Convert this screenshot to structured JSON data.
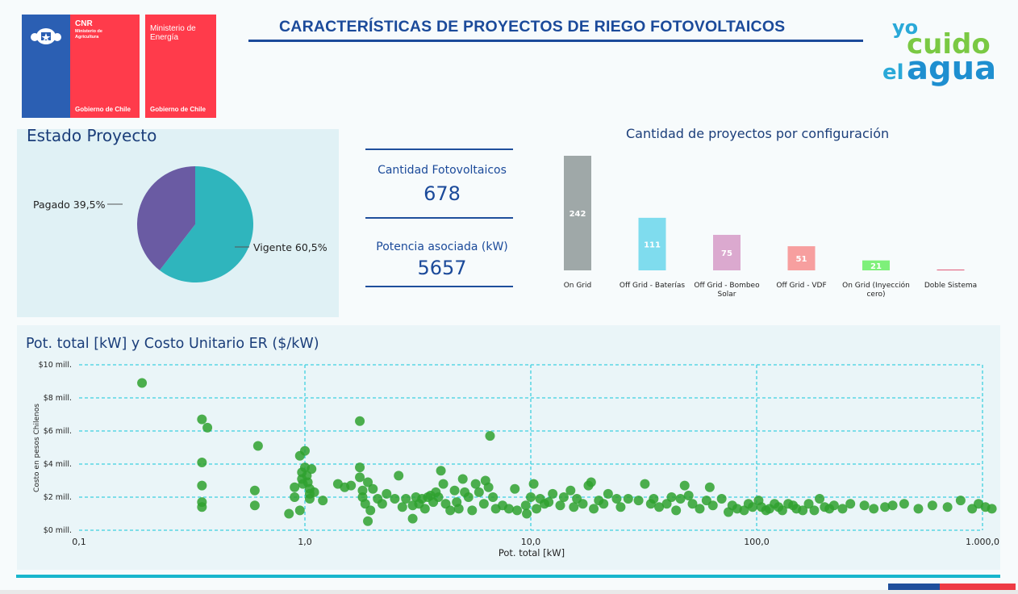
{
  "header": {
    "title": "CARACTERÍSTICAS DE PROYECTOS DE RIEGO FOTOVOLTAICOS",
    "logo_cnr": "CNR",
    "logo_cnr_sub": "Ministerio de Agricultura",
    "logo_gob1": "Gobierno de Chile",
    "logo_min": "Ministerio de Energía",
    "logo_gob2": "Gobierno de Chile",
    "brand": [
      "yo",
      "cuido",
      "el",
      "agua"
    ]
  },
  "estado": {
    "title": "Estado Proyecto",
    "slices": [
      {
        "label": "Vigente 60,5%",
        "value": 60.5,
        "color": "#2fb5bd"
      },
      {
        "label": "Pagado 39,5%",
        "value": 39.5,
        "color": "#6a5ba3"
      }
    ]
  },
  "kpis": [
    {
      "label": "Cantidad Fotovoltaicos",
      "value": "678"
    },
    {
      "label": "Potencia asociada (kW)",
      "value": "5657"
    }
  ],
  "config_chart": {
    "title": "Cantidad de proyectos por configuración",
    "chart_data": {
      "type": "bar",
      "categories": [
        "On Grid",
        "Off Grid - Baterías",
        "Off Grid - Bombeo Solar",
        "Off Grid - VDF",
        "On Grid (Inyección cero)",
        "Doble Sistema"
      ],
      "category_lines": [
        [
          "On Grid"
        ],
        [
          "Off Grid - Baterías"
        ],
        [
          "Off Grid - Bombeo",
          "Solar"
        ],
        [
          "Off Grid - VDF"
        ],
        [
          "On Grid (Inyección",
          "cero)"
        ],
        [
          "Doble Sistema"
        ]
      ],
      "values": [
        242,
        111,
        75,
        51,
        21,
        1
      ],
      "labels": [
        "242",
        "111",
        "75",
        "51",
        "21",
        ""
      ],
      "colors": [
        "#9fa8a8",
        "#7fdcee",
        "#dba9cf",
        "#f79f9f",
        "#7ef07a",
        "#e05a78"
      ]
    }
  },
  "scatter": {
    "title": "Pot. total [kW] y Costo Unitario ER ($/kW)",
    "chart_data": {
      "type": "scatter",
      "xlabel": "Pot. total [kW]",
      "ylabel": "Costo en pesos Chilenos",
      "xscale": "log",
      "xlim": [
        0.1,
        1000
      ],
      "ylim": [
        0,
        10
      ],
      "xticks": [
        "0,1",
        "1,0",
        "10,0",
        "100,0",
        "1.000,0"
      ],
      "yticks": [
        "$0 mill.",
        "$2 mill.",
        "$4 mill.",
        "$6 mill.",
        "$8 mill.",
        "$10 mill."
      ],
      "color": "#2fa12f",
      "points": [
        [
          0.19,
          8.9
        ],
        [
          0.35,
          6.7
        ],
        [
          0.37,
          6.2
        ],
        [
          0.35,
          4.1
        ],
        [
          0.35,
          2.7
        ],
        [
          0.35,
          1.7
        ],
        [
          0.35,
          1.4
        ],
        [
          0.62,
          5.1
        ],
        [
          0.6,
          2.4
        ],
        [
          0.6,
          1.5
        ],
        [
          0.85,
          1.0
        ],
        [
          0.9,
          2.0
        ],
        [
          0.9,
          2.6
        ],
        [
          0.95,
          1.2
        ],
        [
          0.95,
          4.5
        ],
        [
          0.97,
          3.5
        ],
        [
          0.97,
          3.1
        ],
        [
          0.98,
          2.8
        ],
        [
          1.0,
          4.8
        ],
        [
          1.0,
          3.8
        ],
        [
          1.02,
          3.3
        ],
        [
          1.03,
          2.9
        ],
        [
          1.05,
          2.5
        ],
        [
          1.05,
          2.2
        ],
        [
          1.05,
          1.9
        ],
        [
          1.07,
          3.7
        ],
        [
          1.1,
          2.3
        ],
        [
          1.2,
          1.8
        ],
        [
          1.4,
          2.8
        ],
        [
          1.5,
          2.6
        ],
        [
          1.6,
          2.7
        ],
        [
          1.75,
          6.6
        ],
        [
          1.75,
          3.8
        ],
        [
          1.75,
          3.2
        ],
        [
          1.8,
          2.4
        ],
        [
          1.8,
          2.0
        ],
        [
          1.85,
          1.6
        ],
        [
          1.9,
          0.55
        ],
        [
          1.95,
          1.2
        ],
        [
          1.9,
          2.9
        ],
        [
          2.0,
          2.5
        ],
        [
          2.1,
          1.9
        ],
        [
          2.2,
          1.6
        ],
        [
          2.3,
          2.2
        ],
        [
          2.5,
          1.9
        ],
        [
          2.6,
          3.3
        ],
        [
          2.7,
          1.4
        ],
        [
          2.8,
          1.9
        ],
        [
          3.0,
          1.5
        ],
        [
          3.1,
          2.0
        ],
        [
          3.2,
          1.6
        ],
        [
          3.3,
          1.9
        ],
        [
          3.4,
          1.3
        ],
        [
          3.5,
          2.0
        ],
        [
          3.6,
          2.1
        ],
        [
          3.7,
          1.7
        ],
        [
          3.8,
          2.3
        ],
        [
          3.9,
          2.0
        ],
        [
          4.0,
          3.6
        ],
        [
          4.1,
          2.8
        ],
        [
          4.2,
          1.6
        ],
        [
          4.4,
          1.2
        ],
        [
          4.6,
          2.4
        ],
        [
          4.7,
          1.7
        ],
        [
          4.8,
          1.3
        ],
        [
          5.0,
          3.1
        ],
        [
          5.1,
          2.3
        ],
        [
          5.3,
          2.0
        ],
        [
          5.5,
          1.2
        ],
        [
          5.7,
          2.8
        ],
        [
          5.9,
          2.3
        ],
        [
          6.2,
          1.6
        ],
        [
          6.3,
          3.0
        ],
        [
          6.5,
          2.6
        ],
        [
          6.6,
          5.7
        ],
        [
          6.8,
          2.0
        ],
        [
          7.0,
          1.3
        ],
        [
          7.5,
          1.5
        ],
        [
          8.0,
          1.3
        ],
        [
          8.5,
          2.5
        ],
        [
          8.7,
          1.2
        ],
        [
          9.5,
          1.5
        ],
        [
          9.6,
          1.0
        ],
        [
          10.0,
          2.0
        ],
        [
          10.3,
          2.8
        ],
        [
          10.6,
          1.3
        ],
        [
          11.0,
          1.9
        ],
        [
          11.5,
          1.6
        ],
        [
          12.0,
          1.7
        ],
        [
          12.5,
          2.2
        ],
        [
          13.5,
          1.5
        ],
        [
          14.0,
          2.0
        ],
        [
          15.0,
          2.4
        ],
        [
          15.5,
          1.4
        ],
        [
          16.0,
          1.9
        ],
        [
          17.0,
          1.6
        ],
        [
          18.0,
          2.7
        ],
        [
          18.5,
          2.9
        ],
        [
          19.0,
          1.3
        ],
        [
          20.0,
          1.8
        ],
        [
          21.0,
          1.6
        ],
        [
          22.0,
          2.2
        ],
        [
          24.0,
          1.9
        ],
        [
          25.0,
          1.4
        ],
        [
          27.0,
          1.9
        ],
        [
          30.0,
          1.8
        ],
        [
          32.0,
          2.8
        ],
        [
          34.0,
          1.6
        ],
        [
          35.0,
          1.9
        ],
        [
          37.0,
          1.4
        ],
        [
          40.0,
          1.6
        ],
        [
          42.0,
          2.0
        ],
        [
          44.0,
          1.2
        ],
        [
          46.0,
          1.9
        ],
        [
          48.0,
          2.7
        ],
        [
          50.0,
          2.1
        ],
        [
          52.0,
          1.6
        ],
        [
          56.0,
          1.3
        ],
        [
          60.0,
          1.8
        ],
        [
          62.0,
          2.6
        ],
        [
          64.0,
          1.5
        ],
        [
          70.0,
          1.9
        ],
        [
          75.0,
          1.1
        ],
        [
          78.0,
          1.5
        ],
        [
          82.0,
          1.3
        ],
        [
          88.0,
          1.2
        ],
        [
          92.0,
          1.6
        ],
        [
          96.0,
          1.4
        ],
        [
          102.0,
          1.8
        ],
        [
          105.0,
          1.4
        ],
        [
          110.0,
          1.2
        ],
        [
          114.0,
          1.3
        ],
        [
          120.0,
          1.6
        ],
        [
          125.0,
          1.4
        ],
        [
          130.0,
          1.2
        ],
        [
          138.0,
          1.6
        ],
        [
          145.0,
          1.5
        ],
        [
          150.0,
          1.3
        ],
        [
          160.0,
          1.2
        ],
        [
          170.0,
          1.6
        ],
        [
          180.0,
          1.2
        ],
        [
          190.0,
          1.9
        ],
        [
          200.0,
          1.4
        ],
        [
          210.0,
          1.3
        ],
        [
          220.0,
          1.5
        ],
        [
          240.0,
          1.3
        ],
        [
          260.0,
          1.6
        ],
        [
          300.0,
          1.5
        ],
        [
          330.0,
          1.3
        ],
        [
          370.0,
          1.4
        ],
        [
          400.0,
          1.5
        ],
        [
          450.0,
          1.6
        ],
        [
          520.0,
          1.3
        ],
        [
          600.0,
          1.5
        ],
        [
          700.0,
          1.4
        ],
        [
          800.0,
          1.8
        ],
        [
          900.0,
          1.3
        ],
        [
          960.0,
          1.6
        ],
        [
          1030.0,
          1.4
        ],
        [
          1100.0,
          1.3
        ],
        [
          3.0,
          0.7
        ]
      ]
    }
  }
}
